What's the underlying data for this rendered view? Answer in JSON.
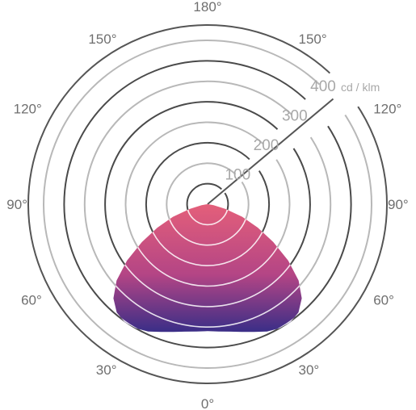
{
  "chart_data": {
    "type": "polar",
    "title": "",
    "angle_ticks_left": [
      "0°",
      "30°",
      "60°",
      "90°",
      "120°",
      "150°",
      "180°"
    ],
    "angle_ticks_right": [
      "30°",
      "60°",
      "90°",
      "120°",
      "150°"
    ],
    "radial_ticks": [
      "100",
      "200",
      "300",
      "400"
    ],
    "radial_values": [
      100,
      200,
      300,
      400
    ],
    "radial_unit": "cd / klm",
    "rlim": [
      0,
      400
    ],
    "series": [
      {
        "angles": [
          0,
          5,
          10,
          15,
          20,
          25,
          30,
          35,
          40,
          45,
          50,
          55,
          60,
          65,
          70,
          75,
          80,
          85,
          90
        ],
        "values": [
          310,
          312,
          316,
          323,
          332,
          343,
          350,
          352,
          345,
          325,
          290,
          240,
          185,
          135,
          90,
          45,
          15,
          4,
          0
        ],
        "gradient": [
          "#e45f7a",
          "#b44585",
          "#3a2e87"
        ]
      }
    ],
    "colors": {
      "ring_dark": "#4a4a4a",
      "ring_light": "#b8b8b8",
      "outer_ring": "#555555",
      "grid_line": "#ffffff"
    }
  }
}
